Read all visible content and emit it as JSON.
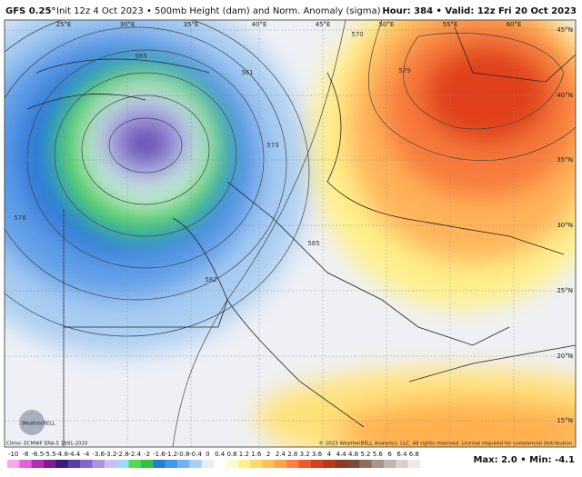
{
  "header": {
    "model": "GFS 0.25°",
    "description": "Init 12z 4 Oct 2023 • 500mb Height (dam) and Norm. Anomaly (sigma)",
    "valid": "Hour: 384 • Valid: 12z Fri 20 Oct 2023"
  },
  "longitudes": [
    "25°E",
    "30°E",
    "35°E",
    "40°E",
    "45°E",
    "50°E",
    "55°E",
    "60°E"
  ],
  "latitudes": [
    "45°N",
    "40°N",
    "35°N",
    "30°N",
    "25°N",
    "20°N",
    "15°N"
  ],
  "contours": [
    "565",
    "561",
    "573",
    "576",
    "579",
    "582",
    "585",
    "570"
  ],
  "footer": {
    "climo": "Climo: ECMWF ERA-5 1991-2020",
    "copyright": "© 2023 WeatherBELL Analytics, LLC. All rights reserved. License required for commercial distribution.",
    "stats": "Max: 2.0 • Min: -4.1",
    "logo": "WeatherBELL"
  },
  "colorbar": {
    "labels": [
      "-10",
      "-8",
      "-6.5",
      "-5.5",
      "-4.8",
      "-4.4",
      "-4",
      "-3.6",
      "-3.2",
      "-2.8",
      "-2.4",
      "-2",
      "-1.6",
      "-1.2",
      "-0.8",
      "-0.4",
      "0",
      "0.4",
      "0.8",
      "1.2",
      "1.6",
      "2",
      "2.4",
      "2.8",
      "3.2",
      "3.6",
      "4",
      "4.4",
      "4.8",
      "5.2",
      "5.6",
      "6",
      "6.4",
      "6.8"
    ],
    "colors": [
      "#f9a6f0",
      "#e860d8",
      "#b62fb0",
      "#7a1f8c",
      "#3b1a7a",
      "#5a3ca8",
      "#7f66cc",
      "#a895e0",
      "#c9c0ee",
      "#9fd6ff",
      "#4fdc4f",
      "#2fc43f",
      "#1f7fd8",
      "#3f98e8",
      "#6fb4f0",
      "#a8d0f5",
      "#e6eef6",
      "#ffffff",
      "#fffbd0",
      "#fff08a",
      "#ffd96a",
      "#ffc05a",
      "#ffa24a",
      "#ff8040",
      "#f05a2a",
      "#d8401c",
      "#b83818",
      "#8c3a22",
      "#7a4a36",
      "#8e6e5e",
      "#a8968c",
      "#c0b6b0",
      "#d8d2ce",
      "#eeeae8"
    ]
  }
}
